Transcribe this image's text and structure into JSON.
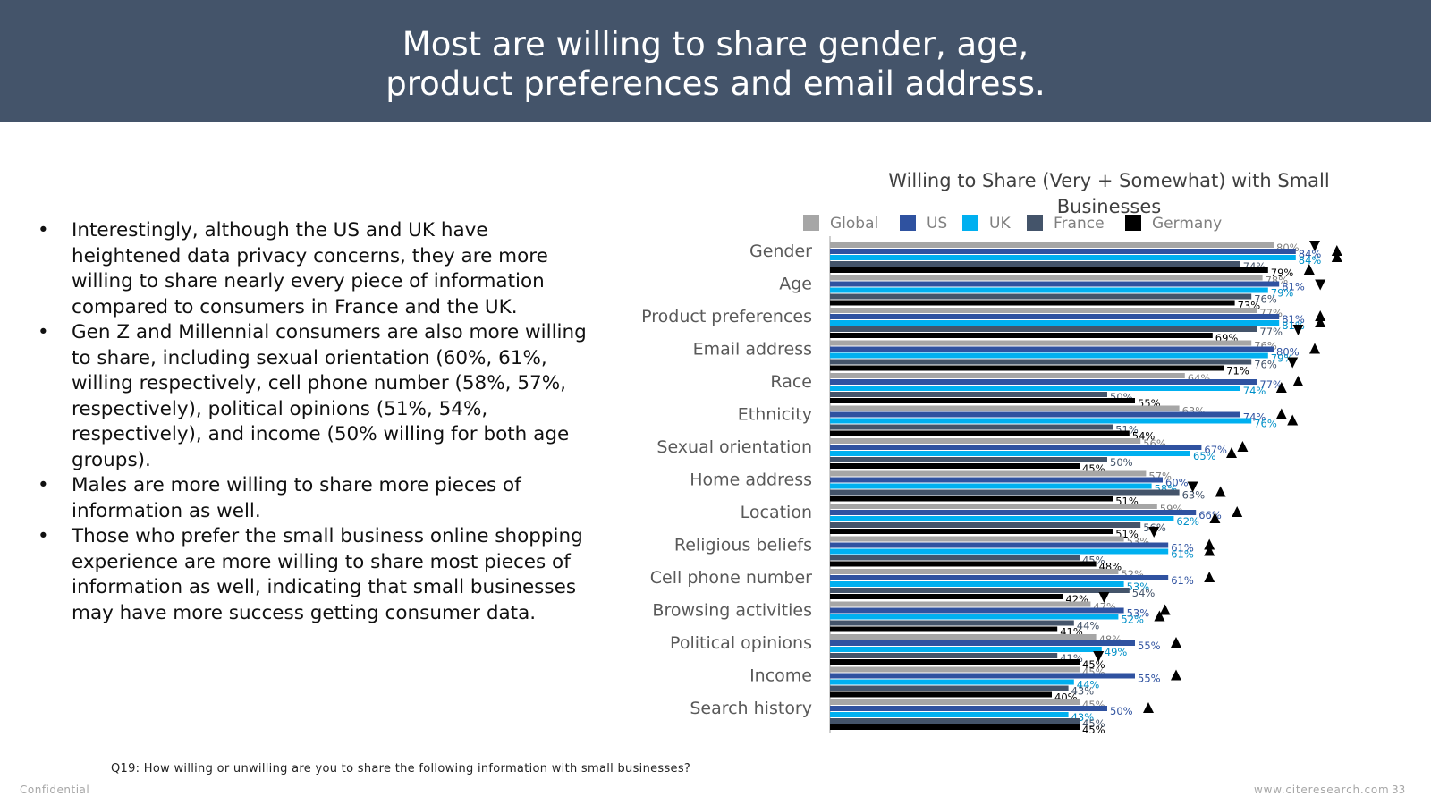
{
  "header": {
    "title_line1": "Most are willing to share gender, age,",
    "title_line2": "product preferences and email address."
  },
  "bullets": [
    "Interestingly, although the US and UK have heightened data privacy concerns, they are more willing to share nearly every piece of information compared to consumers in France and the UK.",
    "Gen Z and Millennial consumers are also more willing to share, including sexual orientation (60%, 61%, willing respectively, cell phone number (58%, 57%, respectively), political opinions (51%, 54%, respectively), and income (50% willing for both age groups).",
    "Males are more willing to share more pieces of information as well.",
    "Those who prefer the small business online shopping experience are more willing to share most pieces of information as well, indicating that small businesses may have more success getting consumer data."
  ],
  "bullet_symbol": "•",
  "colors": {
    "header_bg": "#44546a",
    "Global": "#a6a6a6",
    "US": "#2f52a0",
    "UK": "#00b0f0",
    "France": "#44546a",
    "Germany": "#000000"
  },
  "chart_data": {
    "type": "bar",
    "orientation": "horizontal",
    "title": "Willing to Share (Very + Somewhat) with Small Businesses",
    "legend_position": "top",
    "xlim": [
      0,
      100
    ],
    "grid": false,
    "categories": [
      "Gender",
      "Age",
      "Product preferences",
      "Email address",
      "Race",
      "Ethnicity",
      "Sexual orientation",
      "Home address",
      "Location",
      "Religious beliefs",
      "Cell phone number",
      "Browsing activities",
      "Political opinions",
      "Income",
      "Search history"
    ],
    "series": [
      {
        "name": "Global",
        "values": [
          80,
          78,
          77,
          76,
          64,
          63,
          56,
          57,
          59,
          53,
          52,
          47,
          48,
          45,
          45
        ]
      },
      {
        "name": "US",
        "values": [
          84,
          81,
          81,
          80,
          77,
          74,
          67,
          60,
          66,
          61,
          61,
          53,
          55,
          55,
          50
        ]
      },
      {
        "name": "UK",
        "values": [
          84,
          79,
          81,
          79,
          74,
          76,
          65,
          58,
          62,
          61,
          53,
          52,
          49,
          44,
          43
        ]
      },
      {
        "name": "France",
        "values": [
          74,
          76,
          77,
          76,
          50,
          51,
          50,
          63,
          56,
          45,
          54,
          44,
          41,
          43,
          45
        ]
      },
      {
        "name": "Germany",
        "values": [
          79,
          73,
          69,
          71,
          55,
          54,
          45,
          51,
          51,
          48,
          42,
          41,
          45,
          40,
          45
        ]
      }
    ],
    "significance_markers": [
      {
        "category": "Gender",
        "series": "US",
        "marker": "up"
      },
      {
        "category": "Gender",
        "series": "UK",
        "marker": "up"
      },
      {
        "category": "Gender",
        "series": "Global",
        "marker": "down"
      },
      {
        "category": "Gender",
        "series": "Germany",
        "marker": "up"
      },
      {
        "category": "Age",
        "series": "US",
        "marker": "down"
      },
      {
        "category": "Product preferences",
        "series": "US",
        "marker": "up"
      },
      {
        "category": "Product preferences",
        "series": "UK",
        "marker": "up"
      },
      {
        "category": "Product preferences",
        "series": "France",
        "marker": "down"
      },
      {
        "category": "Email address",
        "series": "US",
        "marker": "up"
      },
      {
        "category": "Email address",
        "series": "France",
        "marker": "down"
      },
      {
        "category": "Race",
        "series": "US",
        "marker": "up"
      },
      {
        "category": "Race",
        "series": "UK",
        "marker": "up"
      },
      {
        "category": "Ethnicity",
        "series": "US",
        "marker": "up"
      },
      {
        "category": "Ethnicity",
        "series": "UK",
        "marker": "up"
      },
      {
        "category": "Sexual orientation",
        "series": "US",
        "marker": "up"
      },
      {
        "category": "Sexual orientation",
        "series": "UK",
        "marker": "up"
      },
      {
        "category": "Home address",
        "series": "France",
        "marker": "up"
      },
      {
        "category": "Home address",
        "series": "UK",
        "marker": "down"
      },
      {
        "category": "Location",
        "series": "US",
        "marker": "up"
      },
      {
        "category": "Location",
        "series": "UK",
        "marker": "up"
      },
      {
        "category": "Location",
        "series": "Germany",
        "marker": "down"
      },
      {
        "category": "Religious beliefs",
        "series": "US",
        "marker": "up"
      },
      {
        "category": "Religious beliefs",
        "series": "UK",
        "marker": "up"
      },
      {
        "category": "Cell phone number",
        "series": "US",
        "marker": "up"
      },
      {
        "category": "Cell phone number",
        "series": "Germany",
        "marker": "down"
      },
      {
        "category": "Browsing activities",
        "series": "US",
        "marker": "up"
      },
      {
        "category": "Browsing activities",
        "series": "UK",
        "marker": "up"
      },
      {
        "category": "Political opinions",
        "series": "US",
        "marker": "up"
      },
      {
        "category": "Political opinions",
        "series": "France",
        "marker": "down"
      },
      {
        "category": "Income",
        "series": "US",
        "marker": "up"
      },
      {
        "category": "Search history",
        "series": "US",
        "marker": "up"
      }
    ]
  },
  "footnote": "Q19: How willing or unwilling are you to share the following information with small businesses?",
  "footer": {
    "confidential": "Confidential",
    "website": "www.citeresearch.com",
    "page_number": "33"
  }
}
